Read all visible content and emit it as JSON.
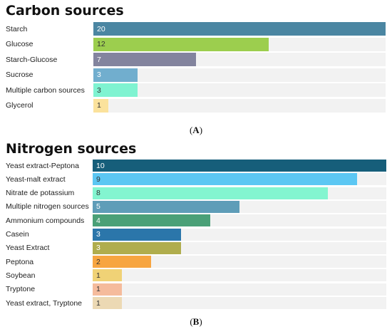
{
  "chart_data": [
    {
      "type": "bar",
      "orientation": "horizontal",
      "title": "Carbon sources",
      "categories": [
        "Starch",
        "Glucose",
        "Starch-Glucose",
        "Sucrose",
        "Multiple carbon sources",
        "Glycerol"
      ],
      "values": [
        20,
        12,
        7,
        3,
        3,
        1
      ],
      "xlim": [
        0,
        20
      ],
      "colors": [
        "#4b86a2",
        "#9cce4e",
        "#83849e",
        "#71aece",
        "#7ff3d1",
        "#fbe29c"
      ],
      "value_text_colors": [
        "#ffffff",
        "#333333",
        "#ffffff",
        "#ffffff",
        "#333333",
        "#333333"
      ],
      "caption_label": "A",
      "grid": false,
      "legend": "none"
    },
    {
      "type": "bar",
      "orientation": "horizontal",
      "title": "Nitrogen sources",
      "categories": [
        "Yeast extract-Peptona",
        "Yeast-malt extract",
        "Nitrate de potassium",
        "Multiple nitrogen sources",
        "Ammonium compounds",
        "Casein",
        "Yeast Extract",
        "Peptona",
        "Soybean",
        "Tryptone",
        "Yeast extract, Tryptone"
      ],
      "values": [
        10,
        9,
        8,
        5,
        4,
        3,
        3,
        2,
        1,
        1,
        1
      ],
      "xlim": [
        0,
        10
      ],
      "colors": [
        "#165e7a",
        "#5cc7f3",
        "#83f5d0",
        "#5f9db8",
        "#4aa077",
        "#2b76aa",
        "#b0ad4d",
        "#f7a540",
        "#f0d276",
        "#f5bb9c",
        "#ecd9b4"
      ],
      "value_text_colors": [
        "#ffffff",
        "#333333",
        "#333333",
        "#ffffff",
        "#ffffff",
        "#ffffff",
        "#ffffff",
        "#333333",
        "#333333",
        "#333333",
        "#333333"
      ],
      "caption_label": "B",
      "grid": false,
      "legend": "none"
    }
  ]
}
